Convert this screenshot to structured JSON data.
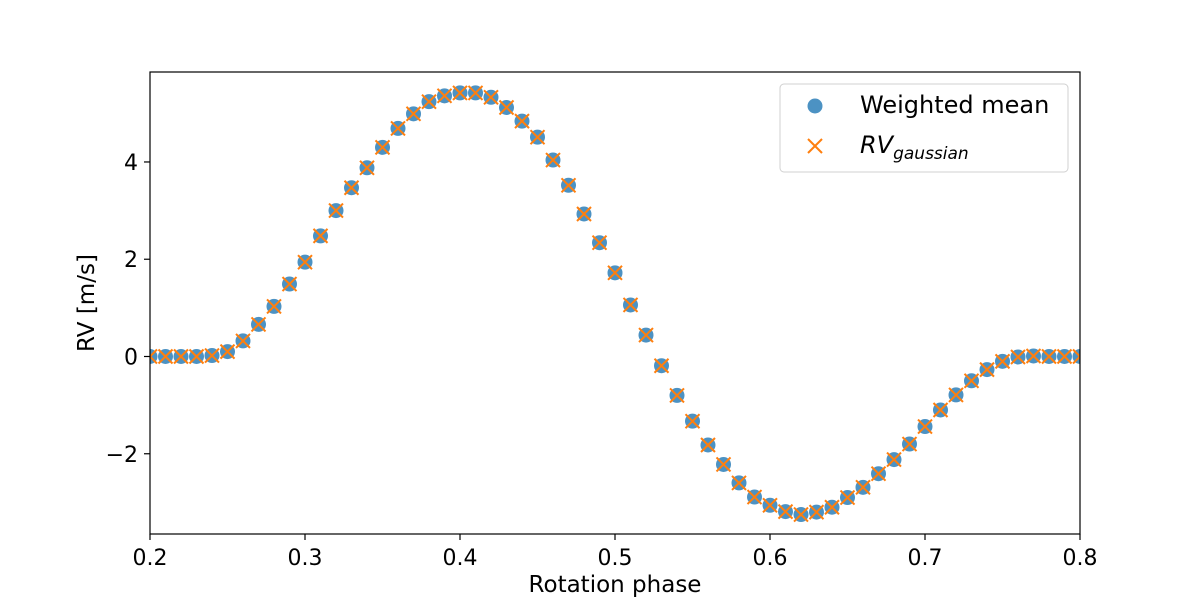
{
  "chart_data": {
    "type": "scatter",
    "title": "",
    "xlabel": "Rotation phase",
    "ylabel": "RV [m/s]",
    "xlim": [
      0.2,
      0.8
    ],
    "ylim": [
      -3.65,
      5.85
    ],
    "xticks": [
      0.2,
      0.3,
      0.4,
      0.5,
      0.6,
      0.7,
      0.8
    ],
    "xtick_labels": [
      "0.2",
      "0.3",
      "0.4",
      "0.5",
      "0.6",
      "0.7",
      "0.8"
    ],
    "yticks": [
      -2,
      0,
      2,
      4
    ],
    "ytick_labels": [
      "−2",
      "0",
      "2",
      "4"
    ],
    "grid": false,
    "legend_position": "top-right",
    "x": [
      0.2,
      0.21,
      0.22,
      0.23,
      0.24,
      0.25,
      0.26,
      0.27,
      0.28,
      0.29,
      0.3,
      0.31,
      0.32,
      0.33,
      0.34,
      0.35,
      0.36,
      0.37,
      0.38,
      0.39,
      0.4,
      0.41,
      0.42,
      0.43,
      0.44,
      0.45,
      0.46,
      0.47,
      0.48,
      0.49,
      0.5,
      0.51,
      0.52,
      0.53,
      0.54,
      0.55,
      0.56,
      0.57,
      0.58,
      0.59,
      0.6,
      0.61,
      0.62,
      0.63,
      0.64,
      0.65,
      0.66,
      0.67,
      0.68,
      0.69,
      0.7,
      0.71,
      0.72,
      0.73,
      0.74,
      0.75,
      0.76,
      0.77,
      0.78,
      0.79,
      0.8
    ],
    "series": [
      {
        "name": "Weighted mean",
        "marker": "circle",
        "color": "#1f77b4",
        "values": [
          0.0,
          0.0,
          0.0,
          0.0,
          0.02,
          0.1,
          0.32,
          0.66,
          1.03,
          1.49,
          1.94,
          2.48,
          3.0,
          3.47,
          3.88,
          4.3,
          4.69,
          4.99,
          5.24,
          5.36,
          5.42,
          5.42,
          5.33,
          5.12,
          4.84,
          4.51,
          4.04,
          3.52,
          2.93,
          2.34,
          1.72,
          1.06,
          0.44,
          -0.19,
          -0.8,
          -1.33,
          -1.82,
          -2.22,
          -2.6,
          -2.89,
          -3.06,
          -3.19,
          -3.25,
          -3.2,
          -3.1,
          -2.9,
          -2.69,
          -2.41,
          -2.12,
          -1.8,
          -1.44,
          -1.1,
          -0.79,
          -0.5,
          -0.27,
          -0.1,
          -0.01,
          0.01,
          0.0,
          0.0,
          0.0
        ]
      },
      {
        "name": "RV_gaussian",
        "marker": "x",
        "color": "#ff7f0e",
        "values": [
          0.0,
          0.0,
          0.0,
          0.0,
          0.02,
          0.1,
          0.32,
          0.66,
          1.03,
          1.49,
          1.94,
          2.48,
          3.0,
          3.47,
          3.88,
          4.3,
          4.69,
          4.99,
          5.24,
          5.36,
          5.42,
          5.42,
          5.33,
          5.12,
          4.84,
          4.51,
          4.04,
          3.52,
          2.93,
          2.34,
          1.72,
          1.06,
          0.44,
          -0.19,
          -0.8,
          -1.33,
          -1.82,
          -2.22,
          -2.6,
          -2.89,
          -3.06,
          -3.19,
          -3.25,
          -3.2,
          -3.1,
          -2.9,
          -2.69,
          -2.41,
          -2.12,
          -1.8,
          -1.44,
          -1.1,
          -0.79,
          -0.5,
          -0.27,
          -0.1,
          -0.01,
          0.01,
          0.0,
          0.0,
          0.0
        ]
      }
    ],
    "legend": [
      {
        "label": "Weighted mean",
        "marker": "circle"
      },
      {
        "label_main": "RV",
        "label_sub": "gaussian",
        "marker": "x"
      }
    ]
  }
}
